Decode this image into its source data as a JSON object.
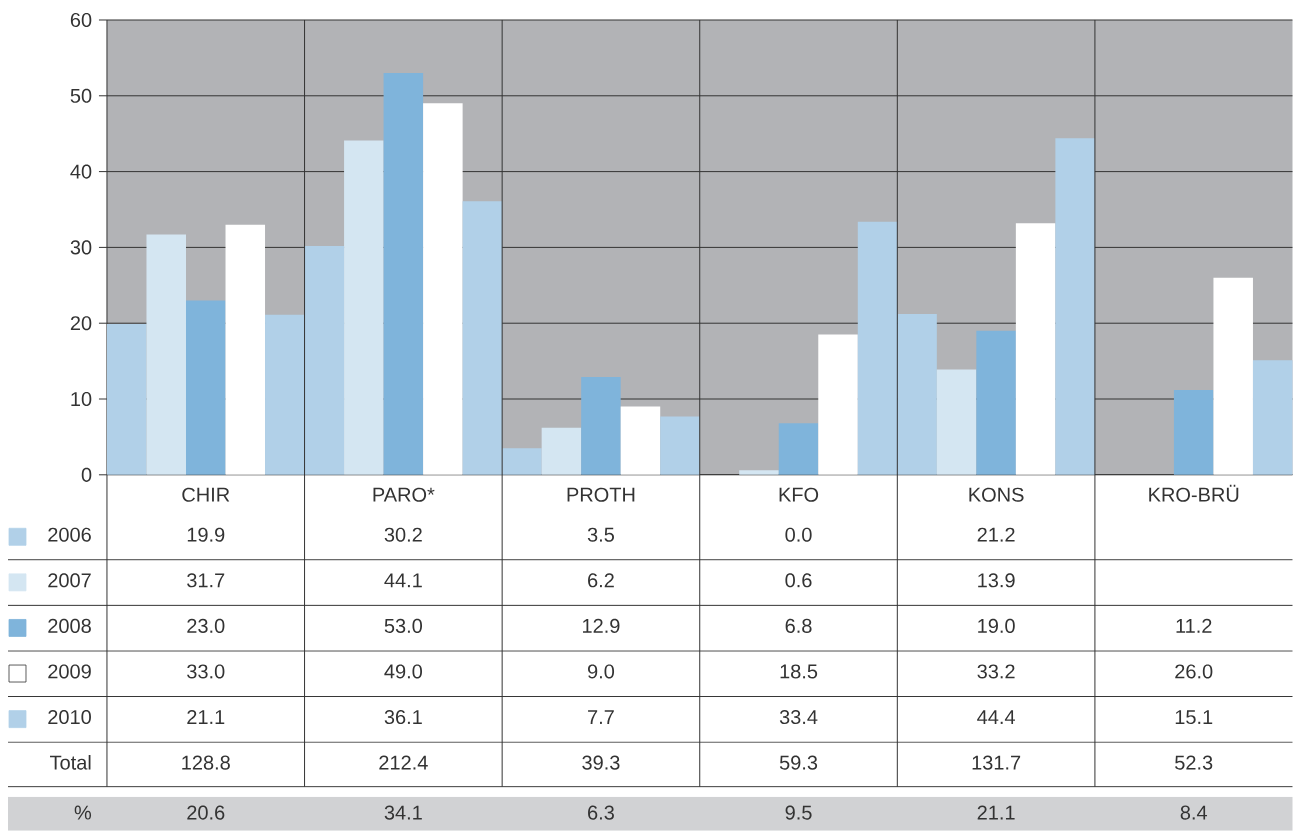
{
  "chart_data": {
    "type": "bar",
    "categories": [
      "CHIR",
      "PARO*",
      "PROTH",
      "KFO",
      "KONS",
      "KRO-BRÜ"
    ],
    "series": [
      {
        "name": "2006",
        "color": "#b1d0e8",
        "values": [
          19.9,
          30.2,
          3.5,
          0.0,
          21.2,
          null
        ],
        "value_labels": [
          "19.9",
          "30.2",
          "3.5",
          "0.0",
          "21.2",
          null
        ]
      },
      {
        "name": "2007",
        "color": "#d4e6f2",
        "values": [
          31.7,
          44.1,
          6.2,
          0.6,
          13.9,
          null
        ],
        "value_labels": [
          "31.7",
          "44.1",
          "6.2",
          "0.6",
          "13.9",
          null
        ]
      },
      {
        "name": "2008",
        "color": "#7fb4db",
        "values": [
          23.0,
          53.0,
          12.9,
          6.8,
          19.0,
          11.2
        ],
        "value_labels": [
          "23.0",
          "53.0",
          "12.9",
          "6.8",
          "19.0",
          "11.2"
        ]
      },
      {
        "name": "2009",
        "color": "#ffffff",
        "values": [
          33.0,
          49.0,
          9.0,
          18.5,
          33.2,
          26.0
        ],
        "value_labels": [
          "33.0",
          "49.0",
          "9.0",
          "18.5",
          "33.2",
          "26.0"
        ]
      },
      {
        "name": "2010",
        "color": "#b1d0e8",
        "values": [
          21.1,
          36.1,
          7.7,
          33.4,
          44.4,
          15.1
        ],
        "value_labels": [
          "21.1",
          "36.1",
          "7.7",
          "33.4",
          "44.4",
          "15.1"
        ]
      }
    ],
    "annotations": [
      "Total",
      "128.8",
      "212.4",
      "39.3",
      "59.3",
      "131.7",
      "52.3",
      "%",
      "20.6",
      "34.1",
      "6.3",
      "9.5",
      "21.1",
      "8.4"
    ],
    "ylim": [
      0,
      60
    ],
    "yticks": [
      0,
      10,
      20,
      30,
      40,
      50,
      60
    ],
    "grid": "y",
    "legend": "bottom left"
  }
}
